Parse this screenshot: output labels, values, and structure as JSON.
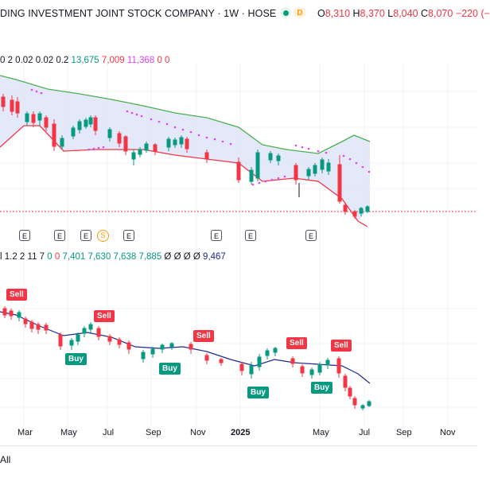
{
  "header": {
    "symbol": "DING INVESTMENT JOINT STOCK COMPANY · 1W · HOSE",
    "badge_d": "D",
    "ohlc": {
      "o_key": "O",
      "o_val": "8,310",
      "h_key": "H",
      "h_val": "8,370",
      "l_key": "L",
      "l_val": "8,040",
      "c_key": "C",
      "c_val": "8,070",
      "chg": "−220 (−"
    }
  },
  "indicator_top": {
    "params": "0 2 0.02 0.02 0.2",
    "v1": "13,675",
    "v2": "7,009",
    "v3": "11,368",
    "v4": "0",
    "v5": "0"
  },
  "indicator_bottom": {
    "params": "l 1.2 2 11 7",
    "v0": "0",
    "v1": "0",
    "v2": "7,401",
    "v3": "7,630",
    "v4": "7,638",
    "v5": "7,885",
    "z1": "Ø",
    "z2": "Ø",
    "z3": "Ø",
    "z4": "Ø",
    "v6": "9,467"
  },
  "events": {
    "e": "E",
    "s": "S"
  },
  "signals": {
    "sell": "Sell",
    "buy": "Buy"
  },
  "xaxis": [
    "Mar",
    "May",
    "Jul",
    "Sep",
    "Nov",
    "2025",
    "May",
    "Jul",
    "Sep",
    "Nov"
  ],
  "footer": {
    "all_label": "All"
  },
  "colors": {
    "up": "#089981",
    "down": "#f23645",
    "band_fill": "#dde3f7",
    "upper": "#4caf50",
    "lower": "#f23645",
    "sar": "#e040fb",
    "ma": "#1e2a8f"
  }
}
